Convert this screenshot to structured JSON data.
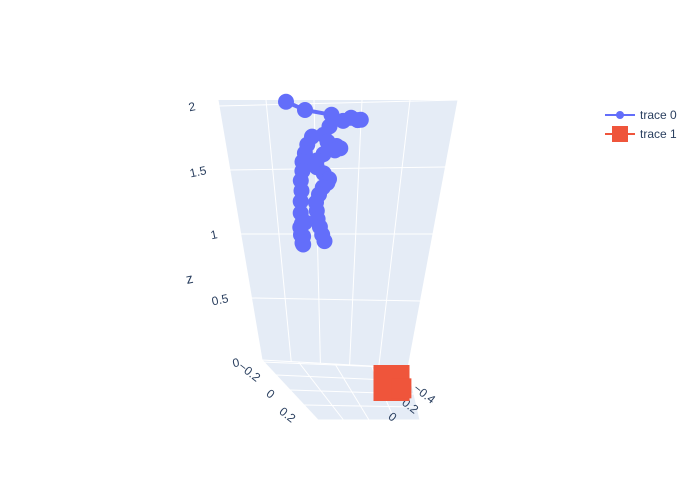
{
  "chart_data": {
    "type": "scatter3d",
    "zaxis": {
      "title": "z",
      "ticks": [
        "0",
        "0.5",
        "1",
        "1.5",
        "2"
      ],
      "range": [
        0,
        2
      ]
    },
    "xaxis_ticks_left": [
      "−0.2",
      "0",
      "0.2"
    ],
    "yaxis_ticks_right": [
      "−0.4",
      "−0.2",
      "0"
    ],
    "series": [
      {
        "name": "trace 0",
        "mode": "lines+markers",
        "marker": "circle",
        "color": "#636efa",
        "points": [
          [
            -0.05,
            0.25,
            2.05
          ],
          [
            0.0,
            0.2,
            2.0
          ],
          [
            0.05,
            0.1,
            1.96
          ],
          [
            0.07,
            0.0,
            1.92
          ],
          [
            0.06,
            -0.08,
            1.88
          ],
          [
            0.02,
            -0.12,
            1.85
          ],
          [
            -0.03,
            -0.1,
            1.83
          ],
          [
            -0.05,
            -0.04,
            1.8
          ],
          [
            -0.03,
            0.03,
            1.77
          ],
          [
            0.0,
            0.05,
            1.74
          ],
          [
            0.02,
            0.02,
            1.71
          ],
          [
            0.01,
            -0.02,
            1.68
          ],
          [
            -0.02,
            -0.03,
            1.65
          ],
          [
            -0.05,
            0.0,
            1.62
          ],
          [
            -0.06,
            0.03,
            1.58
          ],
          [
            -0.04,
            0.06,
            1.55
          ],
          [
            -0.01,
            0.06,
            1.52
          ],
          [
            0.0,
            0.04,
            1.48
          ],
          [
            -0.02,
            0.02,
            1.44
          ],
          [
            -0.04,
            0.02,
            1.4
          ],
          [
            -0.05,
            0.03,
            1.35
          ],
          [
            -0.05,
            0.05,
            1.3
          ],
          [
            -0.04,
            0.06,
            1.25
          ],
          [
            -0.03,
            0.07,
            1.2
          ],
          [
            -0.02,
            0.07,
            1.15
          ],
          [
            -0.01,
            0.07,
            1.1
          ],
          [
            0.0,
            0.07,
            1.06
          ]
        ],
        "branch_points": [
          [
            -0.1,
            0.0,
            1.72
          ],
          [
            -0.14,
            -0.03,
            1.64
          ],
          [
            -0.17,
            -0.06,
            1.56
          ],
          [
            -0.2,
            -0.09,
            1.48
          ],
          [
            -0.22,
            -0.12,
            1.4
          ],
          [
            -0.24,
            -0.14,
            1.32
          ],
          [
            -0.25,
            -0.16,
            1.24
          ],
          [
            -0.26,
            -0.17,
            1.16
          ],
          [
            -0.26,
            -0.17,
            1.08
          ],
          [
            -0.25,
            -0.16,
            1.0
          ],
          [
            -0.23,
            -0.14,
            0.94
          ],
          [
            -0.21,
            -0.11,
            0.9
          ],
          [
            -0.2,
            -0.09,
            0.92
          ],
          [
            -0.2,
            -0.08,
            0.98
          ],
          [
            -0.19,
            -0.06,
            1.04
          ],
          [
            -0.17,
            -0.04,
            1.08
          ],
          [
            -0.15,
            -0.03,
            1.1
          ]
        ]
      },
      {
        "name": "trace 1",
        "mode": "lines+markers",
        "marker": "square",
        "color": "#ef553b",
        "points": [
          [
            0.05,
            -0.3,
            0.0
          ],
          [
            0.08,
            -0.32,
            -0.03
          ]
        ]
      }
    ],
    "legend": {
      "position": "top-right",
      "entries": [
        "trace 0",
        "trace 1"
      ]
    },
    "scene_background": "#e5ecf6",
    "grid_color": "#ffffff"
  }
}
